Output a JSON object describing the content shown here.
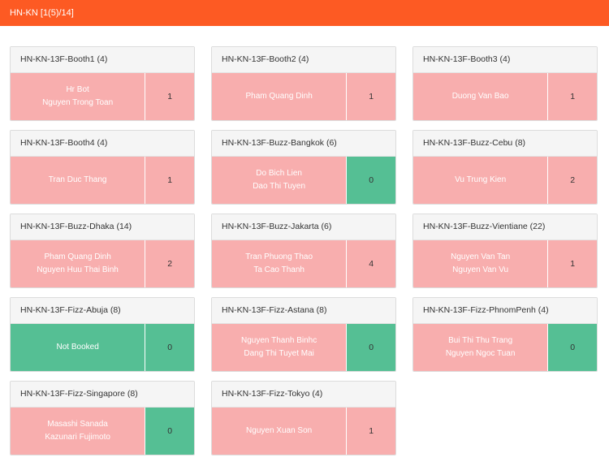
{
  "header": {
    "title": "HN-KN [1(5)/14]"
  },
  "colors": {
    "header": "#fd5a23",
    "occupied": "#f8aeae",
    "available": "#55bf94"
  },
  "rooms": [
    {
      "title": "HN-KN-13F-Booth1 (4)",
      "names": [
        "Hr Bot",
        "Nguyen Trong Toan"
      ],
      "count": "1",
      "status": "booked"
    },
    {
      "title": "HN-KN-13F-Booth2 (4)",
      "names": [
        "Pham Quang Dinh"
      ],
      "count": "1",
      "status": "booked"
    },
    {
      "title": "HN-KN-13F-Booth3 (4)",
      "names": [
        "Duong Van Bao"
      ],
      "count": "1",
      "status": "booked"
    },
    {
      "title": "HN-KN-13F-Booth4 (4)",
      "names": [
        "Tran Duc Thang"
      ],
      "count": "1",
      "status": "booked"
    },
    {
      "title": "HN-KN-13F-Buzz-Bangkok (6)",
      "names": [
        "Do Bich Lien",
        "Dao Thi Tuyen"
      ],
      "count": "0",
      "status": "mixed"
    },
    {
      "title": "HN-KN-13F-Buzz-Cebu (8)",
      "names": [
        "Vu Trung Kien"
      ],
      "count": "2",
      "status": "booked"
    },
    {
      "title": "HN-KN-13F-Buzz-Dhaka (14)",
      "names": [
        "Pham Quang Dinh",
        "Nguyen Huu Thai Binh"
      ],
      "count": "2",
      "status": "booked"
    },
    {
      "title": "HN-KN-13F-Buzz-Jakarta (6)",
      "names": [
        "Tran Phuong Thao",
        "Ta Cao Thanh"
      ],
      "count": "4",
      "status": "booked"
    },
    {
      "title": "HN-KN-13F-Buzz-Vientiane (22)",
      "names": [
        "Nguyen Van Tan",
        "Nguyen Van Vu"
      ],
      "count": "1",
      "status": "booked"
    },
    {
      "title": "HN-KN-13F-Fizz-Abuja (8)",
      "names": [
        "Not Booked"
      ],
      "count": "0",
      "status": "free"
    },
    {
      "title": "HN-KN-13F-Fizz-Astana (8)",
      "names": [
        "Nguyen Thanh Binhc",
        "Dang Thi Tuyet Mai"
      ],
      "count": "0",
      "status": "mixed"
    },
    {
      "title": "HN-KN-13F-Fizz-PhnomPenh (4)",
      "names": [
        "Bui Thi Thu Trang",
        "Nguyen Ngoc Tuan"
      ],
      "count": "0",
      "status": "mixed"
    },
    {
      "title": "HN-KN-13F-Fizz-Singapore (8)",
      "names": [
        "Masashi Sanada",
        "Kazunari Fujimoto"
      ],
      "count": "0",
      "status": "mixed"
    },
    {
      "title": "HN-KN-13F-Fizz-Tokyo (4)",
      "names": [
        "Nguyen Xuan Son"
      ],
      "count": "1",
      "status": "booked"
    }
  ]
}
